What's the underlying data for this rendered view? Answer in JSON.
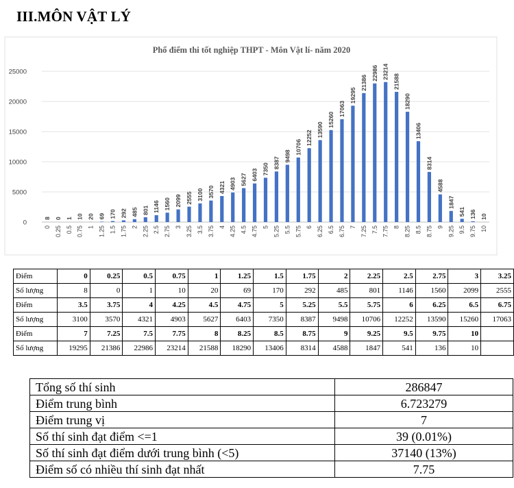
{
  "heading": "III.MÔN VẬT LÝ",
  "chart_data": {
    "type": "bar",
    "title": "Phổ điểm thi tốt nghiệp THPT - Môn Vật lí- năm 2020",
    "categories": [
      "0",
      "0.25",
      "0.5",
      "0.75",
      "1",
      "1.25",
      "1.5",
      "1.75",
      "2",
      "2.25",
      "2.5",
      "2.75",
      "3",
      "3.25",
      "3.5",
      "3.75",
      "4",
      "4.25",
      "4.5",
      "4.75",
      "5",
      "5.25",
      "5.5",
      "5.75",
      "6",
      "6.25",
      "6.5",
      "6.75",
      "7",
      "7.25",
      "7.5",
      "7.75",
      "8",
      "8.25",
      "8.5",
      "8.75",
      "9",
      "9.25",
      "9.5",
      "9.75",
      "10"
    ],
    "values": [
      8,
      0,
      1,
      10,
      20,
      69,
      170,
      292,
      485,
      801,
      1146,
      1560,
      2099,
      2555,
      3100,
      3570,
      4321,
      4903,
      5627,
      6403,
      7350,
      8387,
      9498,
      10706,
      12252,
      13590,
      15260,
      17063,
      19295,
      21386,
      22986,
      23214,
      21588,
      18290,
      13406,
      8314,
      4588,
      1847,
      541,
      136,
      10
    ],
    "y_ticks": [
      "0",
      "5000",
      "10000",
      "15000",
      "20000",
      "25000"
    ],
    "ylim": [
      0,
      25000
    ],
    "color": "#4472C4",
    "grid": true
  },
  "score_table": {
    "rows": [
      {
        "label": "Điểm",
        "bold": true,
        "cells": [
          "0",
          "0.25",
          "0.5",
          "0.75",
          "1",
          "1.25",
          "1.5",
          "1.75",
          "2",
          "2.25",
          "2.5",
          "2.75",
          "3",
          "3.25"
        ]
      },
      {
        "label": "Số lượng",
        "bold": false,
        "cells": [
          "8",
          "0",
          "1",
          "10",
          "20",
          "69",
          "170",
          "292",
          "485",
          "801",
          "1146",
          "1560",
          "2099",
          "2555"
        ]
      },
      {
        "label": "Điểm",
        "bold": true,
        "cells": [
          "3.5",
          "3.75",
          "4",
          "4.25",
          "4.5",
          "4.75",
          "5",
          "5.25",
          "5.5",
          "5.75",
          "6",
          "6.25",
          "6.5",
          "6.75"
        ]
      },
      {
        "label": "Số lượng",
        "bold": false,
        "cells": [
          "3100",
          "3570",
          "4321",
          "4903",
          "5627",
          "6403",
          "7350",
          "8387",
          "9498",
          "10706",
          "12252",
          "13590",
          "15260",
          "17063"
        ]
      },
      {
        "label": "Điểm",
        "bold": true,
        "cells": [
          "7",
          "7.25",
          "7.5",
          "7.75",
          "8",
          "8.25",
          "8.5",
          "8.75",
          "9",
          "9.25",
          "9.5",
          "9.75",
          "10",
          ""
        ]
      },
      {
        "label": "Số lượng",
        "bold": false,
        "cells": [
          "19295",
          "21386",
          "22986",
          "23214",
          "21588",
          "18290",
          "13406",
          "8314",
          "4588",
          "1847",
          "541",
          "136",
          "10",
          ""
        ]
      }
    ]
  },
  "summary": [
    {
      "label": "Tổng số thí sinh",
      "value": "286847"
    },
    {
      "label": "Điểm trung bình",
      "value": "6.723279"
    },
    {
      "label": "Điểm trung vị",
      "value": "7"
    },
    {
      "label": "Số thí sinh đạt điểm <=1",
      "value": "39 (0.01%)"
    },
    {
      "label": "Số thí sinh đạt điểm dưới trung bình (<5)",
      "value": "37140 (13%)"
    },
    {
      "label": "Điểm số có nhiều thí sinh đạt nhất",
      "value": "7.75"
    }
  ]
}
